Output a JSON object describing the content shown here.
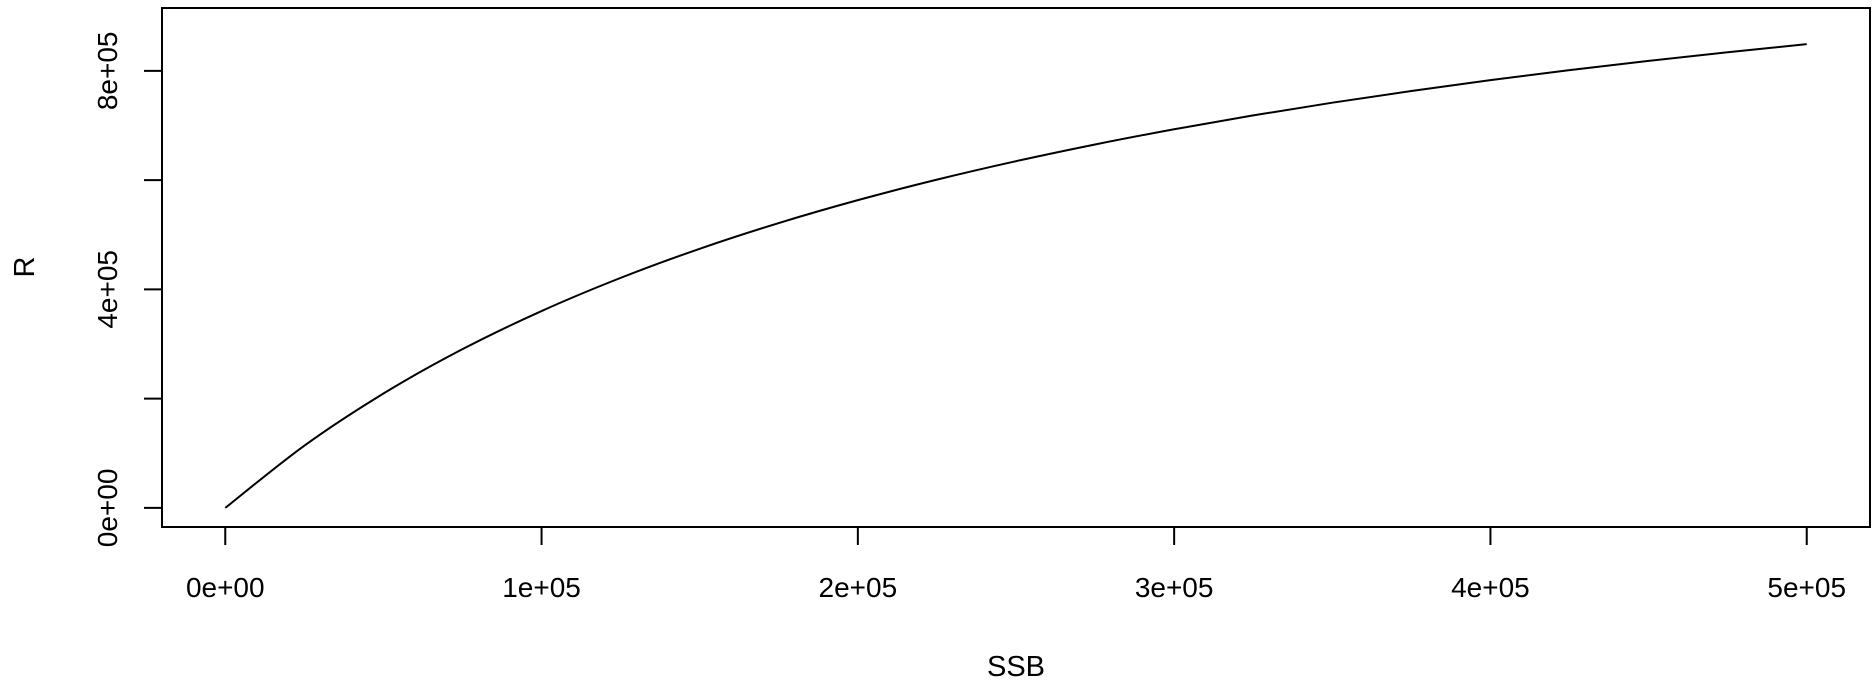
{
  "chart_data": {
    "type": "line",
    "title": "",
    "xlabel": "SSB",
    "ylabel": "R",
    "xlim": [
      -20000,
      520000
    ],
    "ylim": [
      -35000,
      915000
    ],
    "x_ticks": [
      0,
      100000,
      200000,
      300000,
      400000,
      500000
    ],
    "x_tick_labels": [
      "0e+00",
      "1e+05",
      "2e+05",
      "3e+05",
      "4e+05",
      "5e+05"
    ],
    "y_ticks": [
      0,
      200000,
      400000,
      600000,
      800000
    ],
    "y_tick_labels": [
      "0e+00",
      "",
      "4e+05",
      "",
      "8e+05"
    ],
    "grid": false,
    "series": [
      {
        "x": [
          0,
          25000,
          50000,
          75000,
          100000,
          125000,
          150000,
          175000,
          200000,
          225000,
          250000,
          275000,
          300000,
          325000,
          350000,
          375000,
          400000,
          425000,
          450000,
          475000,
          500000
        ],
        "y": [
          0,
          113900,
          209300,
          290500,
          360300,
          421000,
          474300,
          521400,
          563300,
          600800,
          634600,
          665200,
          693000,
          718400,
          741700,
          763100,
          782900,
          801200,
          818200,
          834000,
          848800
        ],
        "color": "#000000"
      }
    ]
  }
}
